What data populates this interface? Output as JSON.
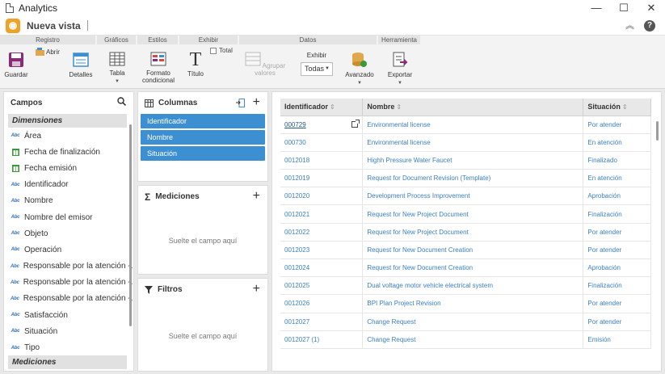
{
  "window": {
    "title": "Analytics",
    "minimize": "—",
    "maximize": "☐",
    "close": "✕"
  },
  "appbar": {
    "view_name": "Nueva vista",
    "collapse_glyph": "︽",
    "help": "?"
  },
  "ribbon": {
    "groups": {
      "registro": "Registro",
      "graficos": "Gráficos",
      "estilos": "Estilos",
      "exhibir": "Exhibir",
      "datos": "Datos",
      "herramienta": "Herramienta"
    },
    "buttons": {
      "guardar": "Guardar",
      "abrir": "Abrir",
      "detalles": "Detalles",
      "tabla": "Tabla",
      "formato_condicional": "Formato condicional",
      "titulo": "Título",
      "total": "Total",
      "agrupar_valores": "Agrupar valores",
      "exhibir_label": "Exhibir",
      "exhibir_value": "Todas",
      "avanzado": "Avanzado",
      "exportar": "Exportar"
    }
  },
  "campos": {
    "title": "Campos",
    "dimensiones_label": "Dimensiones",
    "mediciones_label": "Mediciones",
    "fields": [
      {
        "type": "text",
        "label": "Área"
      },
      {
        "type": "date",
        "label": "Fecha de finalización"
      },
      {
        "type": "date",
        "label": "Fecha emisión"
      },
      {
        "type": "text",
        "label": "Identificador"
      },
      {
        "type": "text",
        "label": "Nombre"
      },
      {
        "type": "text",
        "label": "Nombre del emisor"
      },
      {
        "type": "text",
        "label": "Objeto"
      },
      {
        "type": "text",
        "label": "Operación"
      },
      {
        "type": "text",
        "label": "Responsable por la atención -..."
      },
      {
        "type": "text",
        "label": "Responsable por la atención -..."
      },
      {
        "type": "text",
        "label": "Responsable por la atención -..."
      },
      {
        "type": "text",
        "label": "Satisfacción"
      },
      {
        "type": "text",
        "label": "Situación"
      },
      {
        "type": "text",
        "label": "Tipo"
      }
    ],
    "text_icon": "Abc"
  },
  "columnas": {
    "title": "Columnas",
    "items": [
      "Identificador",
      "Nombre",
      "Situación"
    ]
  },
  "mediciones": {
    "title": "Mediciones",
    "placeholder": "Suelte el campo aquí"
  },
  "filtros": {
    "title": "Filtros",
    "placeholder": "Suelte el campo aquí"
  },
  "grid": {
    "headers": [
      "Identificador",
      "Nombre",
      "Situación"
    ],
    "sort_glyph": "⇕",
    "rows": [
      [
        "000729",
        "Environmental license",
        "Por atender"
      ],
      [
        "000730",
        "Environmental license",
        "En atención"
      ],
      [
        "0012018",
        "Highh Pressure Water Faucet",
        "Finalizado"
      ],
      [
        "0012019",
        "Request for Document Revision (Template)",
        "En atención"
      ],
      [
        "0012020",
        "Development Process Improvement",
        "Aprobación"
      ],
      [
        "0012021",
        "Request for New Project Document",
        "Finalización"
      ],
      [
        "0012022",
        "Request for New Project Document",
        "Por atender"
      ],
      [
        "0012023",
        "Request for New Document Creation",
        "Por atender"
      ],
      [
        "0012024",
        "Request for New Document Creation",
        "Aprobación"
      ],
      [
        "0012025",
        "Dual voltage motor vehicle electrical system",
        "Finalización"
      ],
      [
        "0012026",
        "BPI Plan Project Revision",
        "Por atender"
      ],
      [
        "0012027",
        "Change Request",
        "Por atender"
      ],
      [
        "0012027 (1)",
        "Change Request",
        "Emisión"
      ]
    ]
  }
}
